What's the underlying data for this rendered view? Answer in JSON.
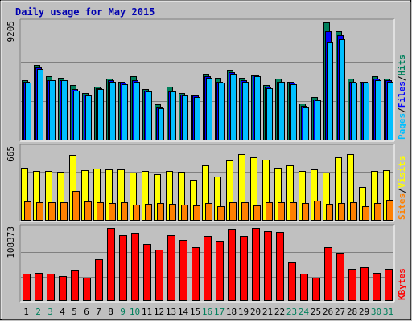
{
  "chart_data": {
    "type": "bar",
    "title": "Daily usage for May 2015",
    "categories": [
      "1",
      "2",
      "3",
      "4",
      "5",
      "6",
      "7",
      "8",
      "9",
      "10",
      "11",
      "12",
      "13",
      "14",
      "15",
      "16",
      "17",
      "18",
      "19",
      "20",
      "21",
      "22",
      "23",
      "24",
      "25",
      "26",
      "27",
      "28",
      "29",
      "30",
      "31"
    ],
    "weekend_days": [
      "2",
      "3",
      "9",
      "10",
      "16",
      "17",
      "23",
      "24",
      "30",
      "31"
    ],
    "panels": [
      {
        "id": "hits-files-pages",
        "ymax_label": "9205",
        "ymax": 9205,
        "legend": [
          "Pages",
          "/",
          "Files",
          "/",
          "Hits"
        ],
        "series": [
          {
            "name": "Hits",
            "color": "#00805c",
            "values": [
              4700,
              5900,
              5000,
              4900,
              4300,
              3700,
              4200,
              4800,
              4600,
              5000,
              4000,
              2800,
              4200,
              3700,
              3600,
              5200,
              4900,
              5500,
              4900,
              5100,
              4300,
              4800,
              4600,
              2900,
              3400,
              9200,
              8500,
              4800,
              4600,
              5000,
              4800
            ]
          },
          {
            "name": "Files",
            "color": "#0000ff",
            "values": [
              4600,
              5700,
              4700,
              4700,
              4000,
              3600,
              4100,
              4700,
              4500,
              4700,
              3900,
              2600,
              3800,
              3600,
              3500,
              5000,
              4600,
              5300,
              4700,
              5100,
              4200,
              4600,
              4500,
              2700,
              3200,
              8500,
              8200,
              4600,
              4600,
              4800,
              4700
            ]
          },
          {
            "name": "Pages",
            "color": "#00bfff",
            "values": [
              4500,
              5600,
              4700,
              4700,
              3900,
              3500,
              4000,
              4600,
              4400,
              4600,
              3800,
              2500,
              3800,
              3500,
              3400,
              4900,
              4500,
              5200,
              4600,
              5000,
              4100,
              4600,
              4400,
              2600,
              3100,
              7700,
              7900,
              4500,
              4500,
              4700,
              4600
            ]
          }
        ]
      },
      {
        "id": "visits-sites",
        "ymax_label": "665",
        "ymax": 665,
        "legend": [
          "Sites",
          "/",
          "Visits"
        ],
        "series": [
          {
            "name": "Visits",
            "color": "#ffff00",
            "values": [
              480,
              450,
              450,
              445,
              600,
              460,
              475,
              470,
              470,
              435,
              450,
              425,
              450,
              445,
              375,
              505,
              405,
              550,
              605,
              575,
              555,
              485,
              505,
              450,
              465,
              440,
              580,
              610,
              305,
              450,
              460
            ]
          },
          {
            "name": "Sites",
            "color": "#ff8000",
            "values": [
              175,
              165,
              170,
              170,
              270,
              175,
              170,
              160,
              170,
              145,
              155,
              160,
              155,
              145,
              140,
              160,
              130,
              170,
              165,
              140,
              165,
              170,
              165,
              160,
              180,
              150,
              160,
              165,
              130,
              160,
              190
            ]
          }
        ]
      },
      {
        "id": "kbytes",
        "ymax_label": "108373",
        "ymax": 108373,
        "legend": [
          "KBytes"
        ],
        "series": [
          {
            "name": "KBytes",
            "color": "#ff0000",
            "values": [
              40000,
              42000,
              40000,
              37000,
              45000,
              35000,
              62000,
              108000,
              98000,
              101000,
              84000,
              76000,
              98000,
              90000,
              80000,
              97000,
              89000,
              107000,
              97000,
              108500,
              104000,
              102000,
              57000,
              40000,
              35000,
              80000,
              72000,
              48000,
              50000,
              42000,
              48000
            ]
          }
        ]
      }
    ]
  }
}
